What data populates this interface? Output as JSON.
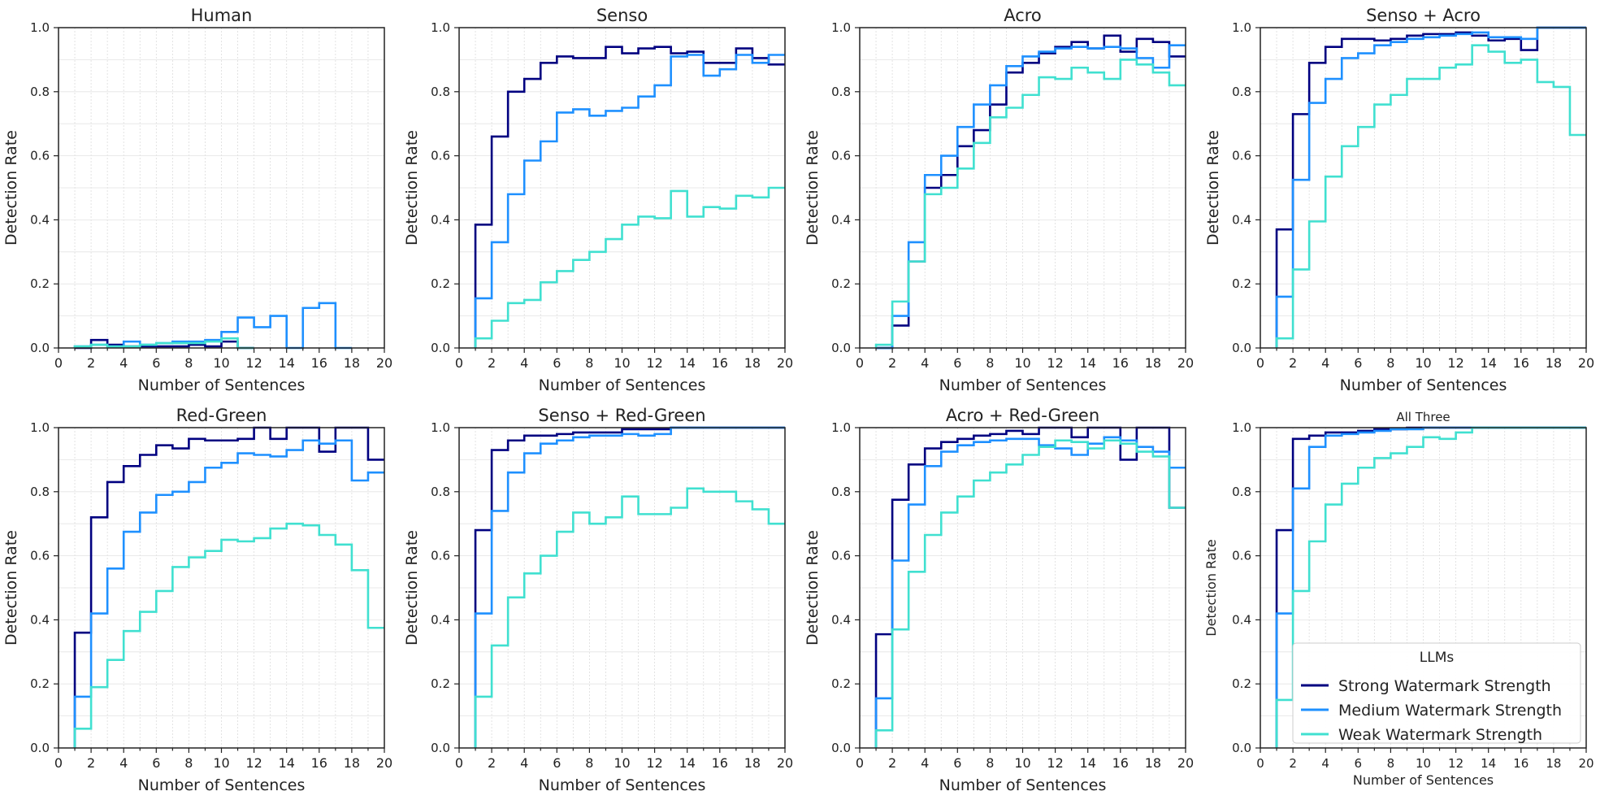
{
  "figure": {
    "legend_title": "LLMs",
    "legend_location": "lower-right (All Three panel)"
  },
  "series_styles": [
    {
      "name": "Strong Watermark Strength",
      "color": "#000080"
    },
    {
      "name": "Medium Watermark Strength",
      "color": "#1e90ff"
    },
    {
      "name": "Weak Watermark Strength",
      "color": "#40e0d0"
    }
  ],
  "chart_data": [
    {
      "type": "line",
      "step": "post",
      "title": "Human",
      "xlabel": "Number of Sentences",
      "ylabel": "Detection Rate",
      "xlim": [
        0,
        20
      ],
      "ylim": [
        0,
        1
      ],
      "xticks": [
        "0",
        "2",
        "4",
        "6",
        "8",
        "10",
        "12",
        "14",
        "16",
        "18",
        "20"
      ],
      "yticks": [
        "0.0",
        "0.2",
        "0.4",
        "0.6",
        "0.8",
        "1.0"
      ],
      "grid": true,
      "x": [
        1,
        2,
        3,
        4,
        5,
        6,
        7,
        8,
        9,
        10,
        11,
        12,
        13,
        14,
        15,
        16,
        17,
        18,
        19,
        20
      ],
      "series": [
        {
          "name": "Strong Watermark Strength",
          "values": [
            0.0,
            0.025,
            0.01,
            0.005,
            0.005,
            0.005,
            0.005,
            0.01,
            0.005,
            0.02,
            0.0,
            null,
            null,
            null,
            null,
            null,
            null,
            null,
            null,
            null
          ]
        },
        {
          "name": "Medium Watermark Strength",
          "values": [
            0.005,
            0.01,
            0.005,
            0.02,
            0.01,
            0.015,
            0.02,
            0.02,
            0.025,
            0.05,
            0.095,
            0.065,
            0.1,
            0.0,
            0.125,
            0.14,
            0.0,
            null,
            null,
            null
          ]
        },
        {
          "name": "Weak Watermark Strength",
          "values": [
            0.005,
            0.01,
            0.005,
            0.005,
            0.01,
            0.015,
            0.015,
            0.015,
            0.02,
            0.03,
            0.0,
            null,
            null,
            null,
            null,
            null,
            null,
            null,
            null,
            null
          ]
        }
      ]
    },
    {
      "type": "line",
      "step": "post",
      "title": "Senso",
      "xlabel": "Number of Sentences",
      "ylabel": "Detection Rate",
      "xlim": [
        0,
        20
      ],
      "ylim": [
        0,
        1
      ],
      "xticks": [
        "0",
        "2",
        "4",
        "6",
        "8",
        "10",
        "12",
        "14",
        "16",
        "18",
        "20"
      ],
      "yticks": [
        "0.0",
        "0.2",
        "0.4",
        "0.6",
        "0.8",
        "1.0"
      ],
      "grid": true,
      "x": [
        1,
        2,
        3,
        4,
        5,
        6,
        7,
        8,
        9,
        10,
        11,
        12,
        13,
        14,
        15,
        16,
        17,
        18,
        19,
        20
      ],
      "series": [
        {
          "name": "Strong Watermark Strength",
          "values": [
            0.385,
            0.66,
            0.8,
            0.84,
            0.89,
            0.91,
            0.905,
            0.905,
            0.94,
            0.92,
            0.935,
            0.94,
            0.92,
            0.925,
            0.89,
            0.89,
            0.935,
            0.905,
            0.885,
            0.885
          ]
        },
        {
          "name": "Medium Watermark Strength",
          "values": [
            0.155,
            0.33,
            0.48,
            0.585,
            0.645,
            0.735,
            0.745,
            0.725,
            0.74,
            0.75,
            0.785,
            0.82,
            0.91,
            0.915,
            0.85,
            0.87,
            0.915,
            0.89,
            0.915,
            0.915
          ]
        },
        {
          "name": "Weak Watermark Strength",
          "values": [
            0.03,
            0.085,
            0.14,
            0.15,
            0.205,
            0.24,
            0.275,
            0.3,
            0.34,
            0.385,
            0.41,
            0.405,
            0.49,
            0.41,
            0.44,
            0.435,
            0.475,
            0.47,
            0.5,
            0.5
          ]
        }
      ]
    },
    {
      "type": "line",
      "step": "post",
      "title": "Acro",
      "xlabel": "Number of Sentences",
      "ylabel": "Detection Rate",
      "xlim": [
        0,
        20
      ],
      "ylim": [
        0,
        1
      ],
      "xticks": [
        "0",
        "2",
        "4",
        "6",
        "8",
        "10",
        "12",
        "14",
        "16",
        "18",
        "20"
      ],
      "yticks": [
        "0.0",
        "0.2",
        "0.4",
        "0.6",
        "0.8",
        "1.0"
      ],
      "grid": true,
      "x": [
        1,
        2,
        3,
        4,
        5,
        6,
        7,
        8,
        9,
        10,
        11,
        12,
        13,
        14,
        15,
        16,
        17,
        18,
        19,
        20
      ],
      "series": [
        {
          "name": "Strong Watermark Strength",
          "values": [
            0.0,
            0.07,
            0.27,
            0.5,
            0.54,
            0.63,
            0.68,
            0.76,
            0.86,
            0.89,
            0.92,
            0.94,
            0.955,
            0.935,
            0.975,
            0.925,
            0.965,
            0.955,
            0.91,
            0.91
          ]
        },
        {
          "name": "Medium Watermark Strength",
          "values": [
            0.0,
            0.1,
            0.33,
            0.54,
            0.6,
            0.69,
            0.76,
            0.82,
            0.88,
            0.91,
            0.925,
            0.935,
            0.94,
            0.935,
            0.94,
            0.935,
            0.905,
            0.875,
            0.945,
            0.945
          ]
        },
        {
          "name": "Weak Watermark Strength",
          "values": [
            0.01,
            0.145,
            0.27,
            0.48,
            0.5,
            0.56,
            0.64,
            0.72,
            0.75,
            0.79,
            0.845,
            0.84,
            0.875,
            0.86,
            0.84,
            0.9,
            0.885,
            0.86,
            0.82,
            0.82
          ]
        }
      ]
    },
    {
      "type": "line",
      "step": "post",
      "title": "Senso + Acro",
      "xlabel": "Number of Sentences",
      "ylabel": "Detection Rate",
      "xlim": [
        0,
        20
      ],
      "ylim": [
        0,
        1
      ],
      "xticks": [
        "0",
        "2",
        "4",
        "6",
        "8",
        "10",
        "12",
        "14",
        "16",
        "18",
        "20"
      ],
      "yticks": [
        "0.0",
        "0.2",
        "0.4",
        "0.6",
        "0.8",
        "1.0"
      ],
      "grid": true,
      "x": [
        1,
        2,
        3,
        4,
        5,
        6,
        7,
        8,
        9,
        10,
        11,
        12,
        13,
        14,
        15,
        16,
        17,
        18,
        19,
        20
      ],
      "series": [
        {
          "name": "Strong Watermark Strength",
          "values": [
            0.37,
            0.73,
            0.89,
            0.94,
            0.965,
            0.965,
            0.96,
            0.965,
            0.975,
            0.98,
            0.98,
            0.985,
            0.975,
            0.96,
            0.965,
            0.93,
            1.0,
            1.0,
            1.0,
            1.0
          ]
        },
        {
          "name": "Medium Watermark Strength",
          "values": [
            0.16,
            0.525,
            0.765,
            0.84,
            0.905,
            0.92,
            0.945,
            0.955,
            0.965,
            0.97,
            0.975,
            0.98,
            0.985,
            0.97,
            0.97,
            0.965,
            1.0,
            1.0,
            1.0,
            1.0
          ]
        },
        {
          "name": "Weak Watermark Strength",
          "values": [
            0.03,
            0.245,
            0.395,
            0.535,
            0.63,
            0.69,
            0.76,
            0.79,
            0.84,
            0.84,
            0.875,
            0.885,
            0.945,
            0.925,
            0.89,
            0.9,
            0.83,
            0.815,
            0.665,
            0.665
          ]
        }
      ]
    },
    {
      "type": "line",
      "step": "post",
      "title": "Red-Green",
      "xlabel": "Number of Sentences",
      "ylabel": "Detection Rate",
      "xlim": [
        0,
        20
      ],
      "ylim": [
        0,
        1
      ],
      "xticks": [
        "0",
        "2",
        "4",
        "6",
        "8",
        "10",
        "12",
        "14",
        "16",
        "18",
        "20"
      ],
      "yticks": [
        "0.0",
        "0.2",
        "0.4",
        "0.6",
        "0.8",
        "1.0"
      ],
      "grid": true,
      "x": [
        1,
        2,
        3,
        4,
        5,
        6,
        7,
        8,
        9,
        10,
        11,
        12,
        13,
        14,
        15,
        16,
        17,
        18,
        19,
        20
      ],
      "series": [
        {
          "name": "Strong Watermark Strength",
          "values": [
            0.36,
            0.72,
            0.83,
            0.88,
            0.915,
            0.945,
            0.935,
            0.965,
            0.96,
            0.96,
            0.965,
            1.0,
            0.965,
            1.0,
            1.0,
            0.925,
            1.0,
            1.0,
            0.9,
            0.9
          ]
        },
        {
          "name": "Medium Watermark Strength",
          "values": [
            0.16,
            0.42,
            0.56,
            0.675,
            0.735,
            0.79,
            0.8,
            0.83,
            0.875,
            0.89,
            0.92,
            0.915,
            0.91,
            0.93,
            0.96,
            0.95,
            0.96,
            0.835,
            0.86,
            0.86
          ]
        },
        {
          "name": "Weak Watermark Strength",
          "values": [
            0.06,
            0.19,
            0.275,
            0.365,
            0.425,
            0.49,
            0.565,
            0.595,
            0.615,
            0.65,
            0.645,
            0.655,
            0.685,
            0.7,
            0.695,
            0.665,
            0.635,
            0.555,
            0.375,
            0.375
          ]
        }
      ]
    },
    {
      "type": "line",
      "step": "post",
      "title": "Senso + Red-Green",
      "xlabel": "Number of Sentences",
      "ylabel": "Detection Rate",
      "xlim": [
        0,
        20
      ],
      "ylim": [
        0,
        1
      ],
      "xticks": [
        "0",
        "2",
        "4",
        "6",
        "8",
        "10",
        "12",
        "14",
        "16",
        "18",
        "20"
      ],
      "yticks": [
        "0.0",
        "0.2",
        "0.4",
        "0.6",
        "0.8",
        "1.0"
      ],
      "grid": true,
      "x": [
        1,
        2,
        3,
        4,
        5,
        6,
        7,
        8,
        9,
        10,
        11,
        12,
        13,
        14,
        15,
        16,
        17,
        18,
        19,
        20
      ],
      "series": [
        {
          "name": "Strong Watermark Strength",
          "values": [
            0.68,
            0.93,
            0.96,
            0.975,
            0.975,
            0.98,
            0.985,
            0.985,
            0.985,
            0.995,
            0.995,
            0.995,
            1.0,
            1.0,
            1.0,
            1.0,
            1.0,
            1.0,
            1.0,
            1.0
          ]
        },
        {
          "name": "Medium Watermark Strength",
          "values": [
            0.42,
            0.74,
            0.86,
            0.92,
            0.95,
            0.96,
            0.97,
            0.975,
            0.975,
            0.98,
            0.975,
            0.98,
            1.0,
            1.0,
            1.0,
            1.0,
            1.0,
            1.0,
            1.0,
            1.0
          ]
        },
        {
          "name": "Weak Watermark Strength",
          "values": [
            0.16,
            0.32,
            0.47,
            0.545,
            0.6,
            0.675,
            0.735,
            0.7,
            0.72,
            0.785,
            0.73,
            0.73,
            0.75,
            0.81,
            0.8,
            0.8,
            0.77,
            0.745,
            0.7,
            0.7
          ]
        }
      ]
    },
    {
      "type": "line",
      "step": "post",
      "title": "Acro + Red-Green",
      "xlabel": "Number of Sentences",
      "ylabel": "Detection Rate",
      "xlim": [
        0,
        20
      ],
      "ylim": [
        0,
        1
      ],
      "xticks": [
        "0",
        "2",
        "4",
        "6",
        "8",
        "10",
        "12",
        "14",
        "16",
        "18",
        "20"
      ],
      "yticks": [
        "0.0",
        "0.2",
        "0.4",
        "0.6",
        "0.8",
        "1.0"
      ],
      "grid": true,
      "x": [
        1,
        2,
        3,
        4,
        5,
        6,
        7,
        8,
        9,
        10,
        11,
        12,
        13,
        14,
        15,
        16,
        17,
        18,
        19,
        20
      ],
      "series": [
        {
          "name": "Strong Watermark Strength",
          "values": [
            0.355,
            0.775,
            0.885,
            0.935,
            0.955,
            0.965,
            0.975,
            0.98,
            0.99,
            0.98,
            1.0,
            1.0,
            0.97,
            1.0,
            1.0,
            0.9,
            1.0,
            1.0,
            0.75,
            0.75
          ]
        },
        {
          "name": "Medium Watermark Strength",
          "values": [
            0.155,
            0.585,
            0.76,
            0.88,
            0.925,
            0.945,
            0.955,
            0.96,
            0.965,
            0.965,
            0.945,
            0.935,
            0.915,
            0.95,
            0.97,
            0.96,
            0.94,
            0.925,
            0.875,
            0.875
          ]
        },
        {
          "name": "Weak Watermark Strength",
          "values": [
            0.055,
            0.37,
            0.55,
            0.665,
            0.735,
            0.785,
            0.835,
            0.86,
            0.885,
            0.915,
            0.94,
            0.96,
            0.955,
            0.935,
            0.96,
            0.95,
            0.925,
            0.91,
            0.75,
            0.75
          ]
        }
      ]
    },
    {
      "type": "line",
      "step": "post",
      "title": "All Three",
      "xlabel": "Number of Sentences",
      "ylabel": "Detection Rate",
      "xlim": [
        0,
        20
      ],
      "ylim": [
        0,
        1
      ],
      "xticks": [
        "0",
        "2",
        "4",
        "6",
        "8",
        "10",
        "12",
        "14",
        "16",
        "18",
        "20"
      ],
      "yticks": [
        "0.0",
        "0.2",
        "0.4",
        "0.6",
        "0.8",
        "1.0"
      ],
      "grid": true,
      "x": [
        1,
        2,
        3,
        4,
        5,
        6,
        7,
        8,
        9,
        10,
        11,
        12,
        13,
        14,
        15,
        16,
        17,
        18,
        19,
        20
      ],
      "series": [
        {
          "name": "Strong Watermark Strength",
          "values": [
            0.68,
            0.965,
            0.975,
            0.985,
            0.985,
            0.99,
            0.995,
            0.995,
            1.0,
            1.0,
            1.0,
            1.0,
            1.0,
            1.0,
            1.0,
            1.0,
            1.0,
            1.0,
            1.0,
            1.0
          ]
        },
        {
          "name": "Medium Watermark Strength",
          "values": [
            0.42,
            0.81,
            0.94,
            0.975,
            0.98,
            0.985,
            0.99,
            0.995,
            0.995,
            1.0,
            1.0,
            1.0,
            1.0,
            1.0,
            1.0,
            1.0,
            1.0,
            1.0,
            1.0,
            1.0
          ]
        },
        {
          "name": "Weak Watermark Strength",
          "values": [
            0.15,
            0.49,
            0.645,
            0.76,
            0.825,
            0.875,
            0.905,
            0.92,
            0.94,
            0.97,
            0.965,
            0.985,
            1.0,
            1.0,
            1.0,
            1.0,
            1.0,
            1.0,
            1.0,
            1.0
          ]
        }
      ]
    }
  ]
}
